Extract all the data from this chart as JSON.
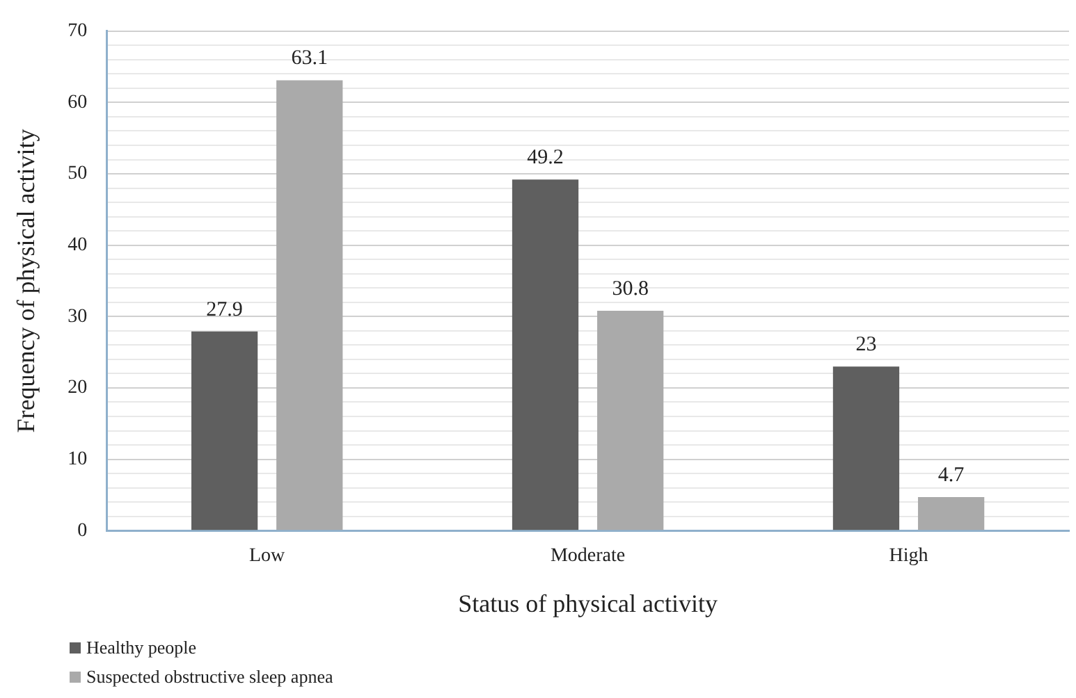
{
  "chart_data": {
    "type": "bar",
    "xlabel": "Status of physical activity",
    "ylabel": "Frequency of physical activity",
    "categories": [
      "Low",
      "Moderate",
      "High"
    ],
    "series": [
      {
        "name": "Healthy people",
        "color": "#5f5f5f",
        "values": [
          27.9,
          49.2,
          23
        ]
      },
      {
        "name": "Suspected obstructive sleep apnea",
        "color": "#aaaaaa",
        "values": [
          63.1,
          30.8,
          4.7
        ]
      }
    ],
    "ylim": [
      0,
      70
    ],
    "yticks": [
      0,
      {
        "value": 2,
        "label": null
      },
      {
        "value": 4,
        "label": null
      },
      {
        "value": 6,
        "label": null
      },
      {
        "value": 8,
        "label": null
      },
      10,
      {
        "value": 12,
        "label": null
      },
      {
        "value": 14,
        "label": null
      },
      {
        "value": 16,
        "label": null
      },
      {
        "value": 18,
        "label": null
      },
      20,
      {
        "value": 22,
        "label": null
      },
      {
        "value": 24,
        "label": null
      },
      {
        "value": 26,
        "label": null
      },
      {
        "value": 28,
        "label": null
      },
      30,
      {
        "value": 32,
        "label": null
      },
      {
        "value": 34,
        "label": null
      },
      {
        "value": 36,
        "label": null
      },
      {
        "value": 38,
        "label": null
      },
      40,
      {
        "value": 42,
        "label": null
      },
      {
        "value": 44,
        "label": null
      },
      {
        "value": 46,
        "label": null
      },
      {
        "value": 48,
        "label": null
      },
      50,
      {
        "value": 52,
        "label": null
      },
      {
        "value": 54,
        "label": null
      },
      {
        "value": 56,
        "label": null
      },
      {
        "value": 58,
        "label": null
      },
      60,
      {
        "value": 62,
        "label": null
      },
      {
        "value": 64,
        "label": null
      },
      {
        "value": 66,
        "label": null
      },
      {
        "value": 68,
        "label": null
      },
      70
    ],
    "grid": "y",
    "legend": "bottom left",
    "data_labels": true
  }
}
